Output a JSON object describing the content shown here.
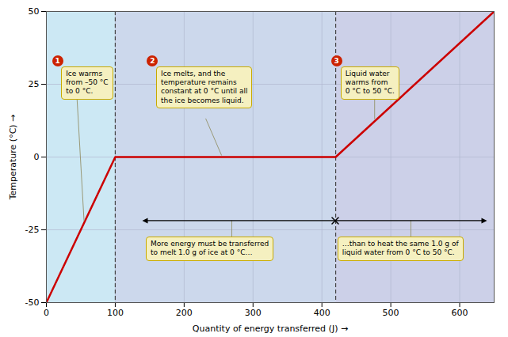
{
  "chart_data": {
    "type": "line",
    "xlabel": "Quantity of energy transferred (J)",
    "ylabel": "Temperature (°C)",
    "x": [
      0,
      100,
      420,
      650
    ],
    "values": [
      -50,
      0,
      0,
      50
    ],
    "color": "#cc0000",
    "xlim": [
      0,
      650
    ],
    "ylim": [
      -50,
      50
    ],
    "xticks": [
      0,
      100,
      200,
      300,
      400,
      500,
      600
    ],
    "yticks": [
      -50,
      -25,
      0,
      25,
      50
    ],
    "grid": true,
    "annotations": [
      {
        "label": "1",
        "text": "Ice warms\nfrom –50 °C\nto 0 °C."
      },
      {
        "label": "2",
        "text": "Ice melts, and the\ntemperature remains\nconstant at 0 °C until all\nthe ice becomes liquid."
      },
      {
        "label": "3",
        "text": "Liquid water\nwarms from\n0 °C to 50 °C."
      },
      {
        "text": "More energy must be transferred\nto melt 1.0 g of ice at 0 °C…"
      },
      {
        "text": "…than to heat the same 1.0 g of\nliquid water from 0 °C to 50 °C."
      }
    ]
  }
}
